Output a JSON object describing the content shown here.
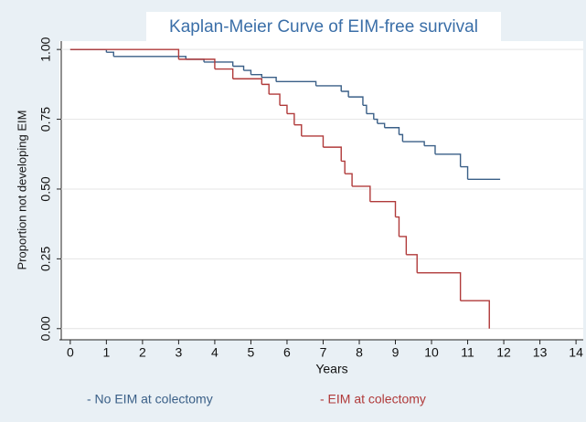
{
  "chart_data": {
    "type": "step",
    "title": "Kaplan-Meier Curve of EIM-free survival",
    "x_label": "Years",
    "y_label": "Proportion not developing EIM",
    "xlim": [
      -0.3,
      14.2
    ],
    "ylim": [
      -0.04,
      1.03
    ],
    "xticks": [
      0,
      1,
      2,
      3,
      4,
      5,
      6,
      7,
      8,
      9,
      10,
      11,
      12,
      13,
      14
    ],
    "yticks": [
      {
        "value": 0,
        "label": "0.00"
      },
      {
        "value": 0.25,
        "label": "0.25"
      },
      {
        "value": 0.5,
        "label": "0.50"
      },
      {
        "value": 0.75,
        "label": "0.75"
      },
      {
        "value": 1,
        "label": "1.00"
      }
    ],
    "grid": true,
    "series": [
      {
        "name": "- No EIM at colectomy",
        "color": "#3a5f87",
        "x": [
          0,
          1.0,
          1.2,
          3.2,
          3.7,
          4.5,
          4.8,
          5.0,
          5.3,
          5.7,
          6.8,
          7.5,
          7.7,
          8.1,
          8.2,
          8.4,
          8.5,
          8.7,
          9.1,
          9.2,
          9.8,
          10.1,
          10.8,
          11.0,
          11.9
        ],
        "values": [
          1.0,
          0.99,
          0.975,
          0.965,
          0.955,
          0.94,
          0.925,
          0.91,
          0.9,
          0.885,
          0.87,
          0.85,
          0.83,
          0.8,
          0.77,
          0.75,
          0.735,
          0.72,
          0.695,
          0.67,
          0.655,
          0.625,
          0.58,
          0.535,
          0.535
        ]
      },
      {
        "name": "- EIM at colectomy",
        "color": "#b03a3a",
        "x": [
          0,
          3.0,
          4.0,
          4.5,
          5.3,
          5.5,
          5.8,
          6.0,
          6.2,
          6.4,
          7.0,
          7.5,
          7.6,
          7.8,
          8.3,
          9.0,
          9.1,
          9.3,
          9.6,
          10.8,
          11.6
        ],
        "values": [
          1.0,
          0.965,
          0.93,
          0.895,
          0.875,
          0.84,
          0.8,
          0.77,
          0.73,
          0.69,
          0.65,
          0.6,
          0.555,
          0.51,
          0.455,
          0.4,
          0.33,
          0.265,
          0.2,
          0.1,
          0.0
        ]
      }
    ]
  }
}
